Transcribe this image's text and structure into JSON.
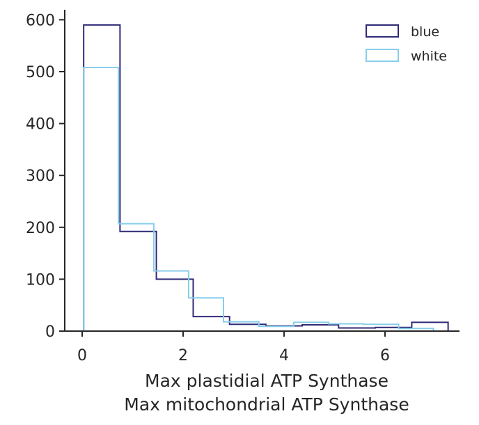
{
  "chart_data": {
    "type": "histogram",
    "xlabel": "Max plastidial ATP Synthase\nMax mitochondrial ATP Synthase",
    "ylabel": "",
    "xlim": [
      -0.35,
      7.6
    ],
    "ylim": [
      0,
      620
    ],
    "xticks": [
      0,
      2,
      4,
      6
    ],
    "yticks": [
      0,
      100,
      200,
      300,
      400,
      500,
      600
    ],
    "legend_position": "top-right",
    "grid": false,
    "series": [
      {
        "name": "blue",
        "color": "#2e2a78",
        "edges": [
          0.03,
          0.75,
          1.47,
          2.2,
          2.92,
          3.64,
          4.36,
          5.08,
          5.81,
          6.53,
          7.25
        ],
        "counts": [
          590,
          192,
          100,
          28,
          13,
          10,
          12,
          6,
          7,
          17
        ]
      },
      {
        "name": "white",
        "color": "#87ceeb",
        "edges": [
          0.03,
          0.72,
          1.42,
          2.11,
          2.8,
          3.5,
          4.19,
          4.88,
          5.57,
          6.27,
          6.96
        ],
        "counts": [
          508,
          207,
          116,
          64,
          18,
          9,
          17,
          14,
          13,
          5
        ]
      }
    ]
  }
}
